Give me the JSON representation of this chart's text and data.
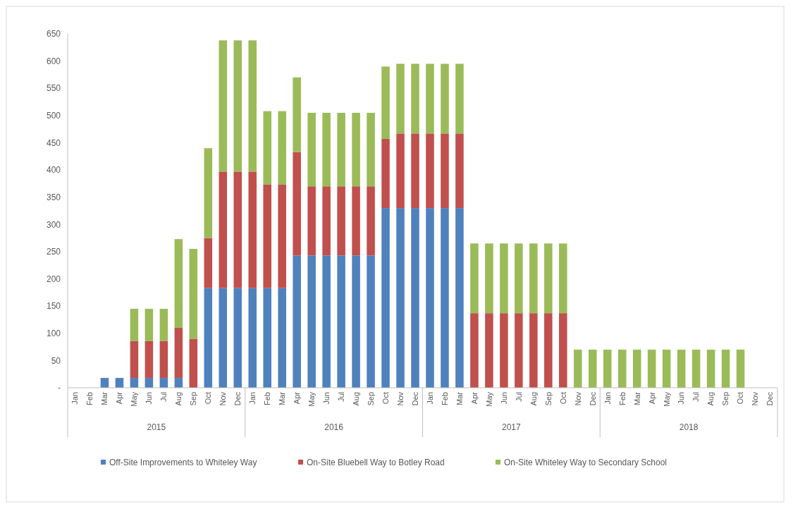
{
  "chart_data": {
    "type": "bar",
    "stacked": true,
    "categories": [
      "Jan",
      "Feb",
      "Mar",
      "Apr",
      "May",
      "Jun",
      "Jul",
      "Aug",
      "Sep",
      "Oct",
      "Nov",
      "Dec",
      "Jan",
      "Feb",
      "Mar",
      "Apr",
      "May",
      "Jun",
      "Jul",
      "Aug",
      "Sep",
      "Oct",
      "Nov",
      "Dec",
      "Jan",
      "Feb",
      "Mar",
      "Apr",
      "May",
      "Jun",
      "Jul",
      "Aug",
      "Sep",
      "Oct",
      "Nov",
      "Dec",
      "Jan",
      "Feb",
      "Mar",
      "Apr",
      "May",
      "Jun",
      "Jul",
      "Aug",
      "Sep",
      "Oct",
      "Nov",
      "Dec"
    ],
    "series": [
      {
        "name": "Off-Site Improvements to Whiteley Way",
        "color": "#4f81bd",
        "values": [
          null,
          null,
          18,
          18,
          18,
          18,
          18,
          18,
          null,
          183,
          183,
          183,
          183,
          183,
          183,
          243,
          243,
          243,
          243,
          243,
          243,
          330,
          330,
          330,
          330,
          330,
          330,
          null,
          null,
          null,
          null,
          null,
          null,
          null,
          null,
          null,
          null,
          null,
          null,
          null,
          null,
          null,
          null,
          null,
          null,
          null,
          null,
          null
        ]
      },
      {
        "name": "On-Site Bluebell Way to Botley Road",
        "color": "#c0504d",
        "values": [
          null,
          null,
          null,
          null,
          68,
          68,
          68,
          92,
          90,
          92,
          214,
          214,
          214,
          190,
          190,
          190,
          127,
          127,
          127,
          127,
          127,
          127,
          137,
          137,
          137,
          137,
          137,
          137,
          137,
          137,
          137,
          137,
          137,
          137,
          null,
          null,
          null,
          null,
          null,
          null,
          null,
          null,
          null,
          null,
          null,
          null,
          null,
          null
        ]
      },
      {
        "name": "On-Site Whiteley Way to Secondary School",
        "color": "#9bbb59",
        "values": [
          null,
          null,
          null,
          null,
          59,
          59,
          59,
          163,
          165,
          165,
          241,
          241,
          241,
          135,
          135,
          137,
          135,
          135,
          135,
          135,
          135,
          133,
          128,
          128,
          128,
          128,
          128,
          128,
          128,
          128,
          128,
          128,
          128,
          128,
          70,
          70,
          70,
          70,
          70,
          70,
          70,
          70,
          70,
          70,
          70,
          70,
          null,
          null
        ]
      }
    ],
    "ylim": [
      0,
      650
    ],
    "yticks": [
      {
        "value": 0,
        "label": "-"
      },
      50,
      100,
      150,
      200,
      250,
      300,
      350,
      400,
      450,
      500,
      550,
      600,
      650
    ],
    "annotations": [
      "2015",
      "2016",
      "2017",
      "2018"
    ],
    "legend": "bottom",
    "grid": false
  }
}
